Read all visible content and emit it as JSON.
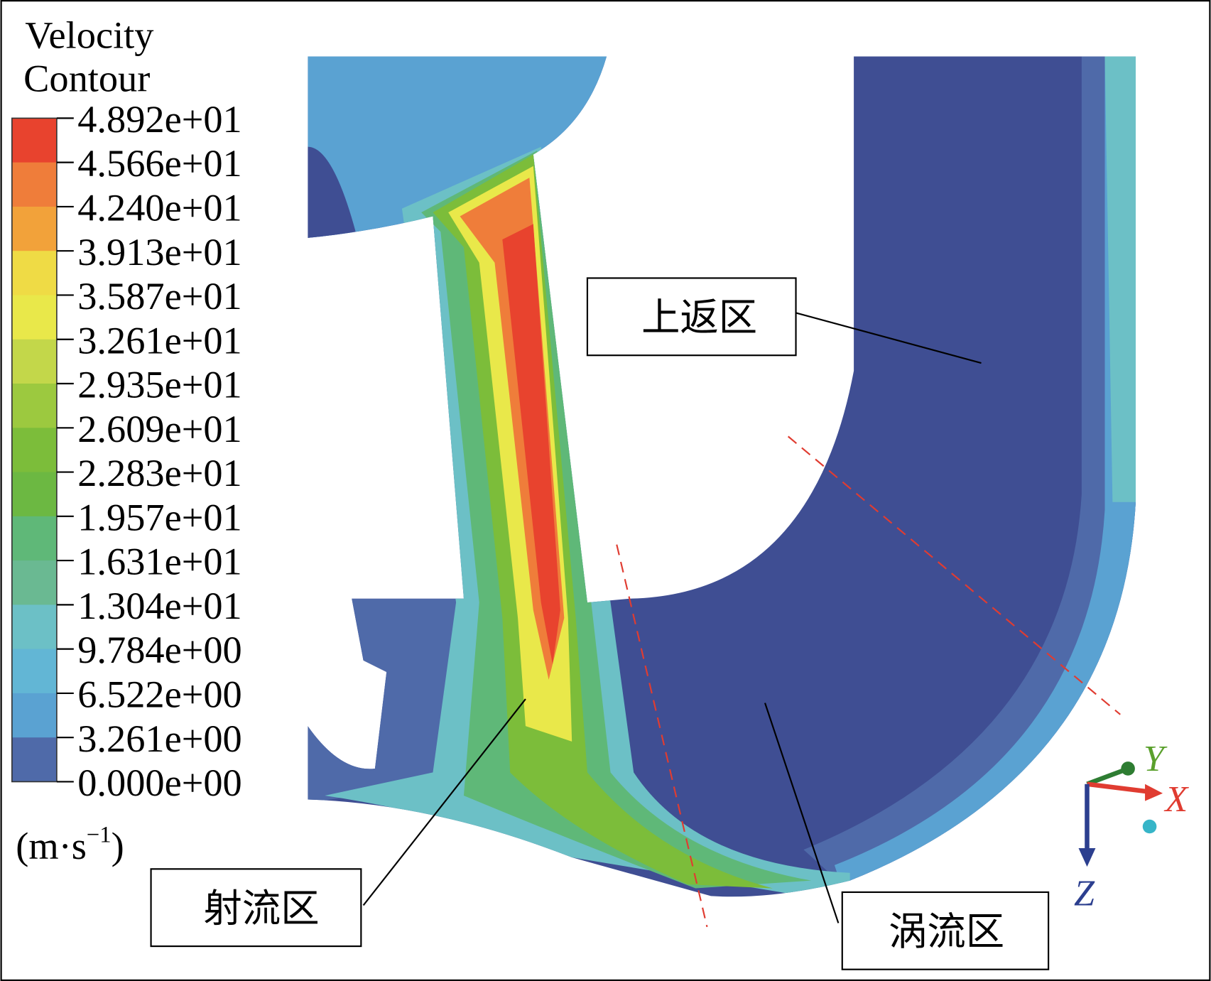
{
  "legend": {
    "title": [
      "Velocity",
      "Contour"
    ],
    "ticks": [
      "4.892e+01",
      "4.566e+01",
      "4.240e+01",
      "3.913e+01",
      "3.587e+01",
      "3.261e+01",
      "2.935e+01",
      "2.609e+01",
      "2.283e+01",
      "1.957e+01",
      "1.631e+01",
      "1.304e+01",
      "9.784e+00",
      "6.522e+00",
      "3.261e+00",
      "0.000e+00"
    ],
    "unit": [
      "(m·s",
      "−1",
      ")"
    ]
  },
  "annotations": {
    "upper_return": "上返区",
    "jet": "射流区",
    "vortex": "涡流区"
  },
  "axes": {
    "y": "Y",
    "x": "X",
    "z": "Z"
  }
}
